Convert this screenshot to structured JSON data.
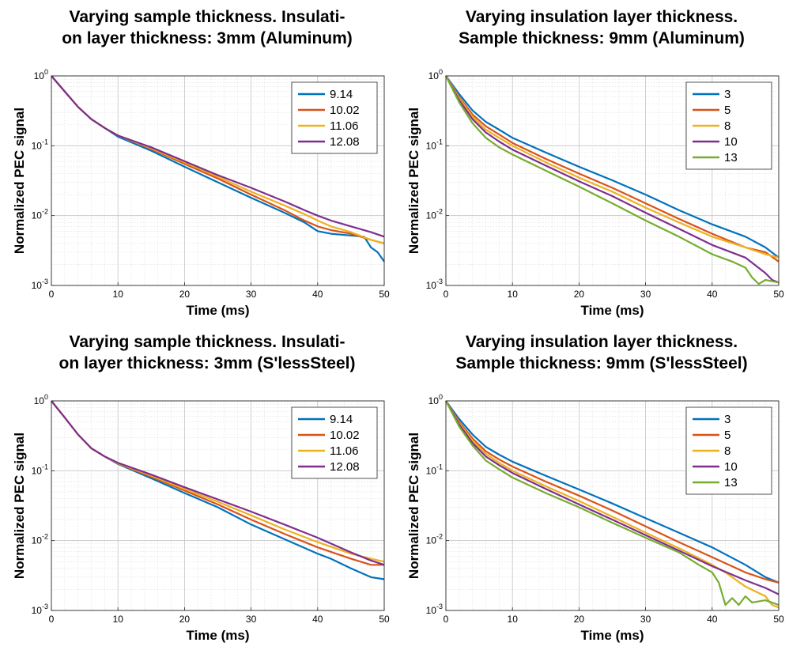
{
  "chart_data": [
    {
      "type": "line",
      "title": [
        "Varying sample thickness. Insulati-",
        "on layer thickness: 3mm (Aluminum)"
      ],
      "xlabel": "Time (ms)",
      "ylabel": "Normalized PEC signal",
      "xlim": [
        0,
        50
      ],
      "ylim": [
        0.001,
        1
      ],
      "yscale": "log",
      "grid": true,
      "legend_position": "top-right",
      "x_ticks": [
        "0",
        "10",
        "20",
        "30",
        "40",
        "50"
      ],
      "y_ticks": [
        {
          "base": "10",
          "exp": "0"
        },
        {
          "base": "10",
          "exp": "-1"
        },
        {
          "base": "10",
          "exp": "-2"
        },
        {
          "base": "10",
          "exp": "-3"
        }
      ],
      "series": [
        {
          "name": "9.14",
          "color": "#0072BD",
          "x": [
            0,
            2,
            4,
            6,
            8,
            10,
            15,
            20,
            25,
            30,
            35,
            38,
            40,
            42,
            45,
            47,
            48,
            49,
            50
          ],
          "y": [
            1,
            0.6,
            0.36,
            0.24,
            0.18,
            0.135,
            0.085,
            0.05,
            0.03,
            0.018,
            0.011,
            0.008,
            0.006,
            0.0055,
            0.0052,
            0.005,
            0.0035,
            0.003,
            0.0022
          ]
        },
        {
          "name": "10.02",
          "color": "#D95319",
          "x": [
            0,
            2,
            4,
            6,
            8,
            10,
            15,
            20,
            25,
            30,
            35,
            38,
            40,
            42,
            45,
            48,
            50
          ],
          "y": [
            1,
            0.6,
            0.36,
            0.24,
            0.18,
            0.14,
            0.09,
            0.055,
            0.034,
            0.02,
            0.012,
            0.0085,
            0.007,
            0.0062,
            0.0055,
            0.0045,
            0.004
          ]
        },
        {
          "name": "11.06",
          "color": "#EDB120",
          "x": [
            0,
            2,
            4,
            6,
            8,
            10,
            15,
            20,
            25,
            30,
            35,
            38,
            40,
            42,
            45,
            48,
            50
          ],
          "y": [
            1,
            0.6,
            0.36,
            0.24,
            0.18,
            0.14,
            0.092,
            0.058,
            0.036,
            0.022,
            0.014,
            0.0105,
            0.0085,
            0.007,
            0.0058,
            0.0045,
            0.004
          ]
        },
        {
          "name": "12.08",
          "color": "#7E2F8E",
          "x": [
            0,
            2,
            4,
            6,
            8,
            10,
            15,
            20,
            25,
            30,
            35,
            38,
            40,
            42,
            45,
            48,
            50
          ],
          "y": [
            1,
            0.6,
            0.36,
            0.24,
            0.18,
            0.14,
            0.095,
            0.06,
            0.038,
            0.025,
            0.016,
            0.012,
            0.01,
            0.0085,
            0.007,
            0.0058,
            0.005
          ]
        }
      ]
    },
    {
      "type": "line",
      "title": [
        "Varying insulation layer thickness.",
        "Sample thickness: 9mm (Aluminum)"
      ],
      "xlabel": "Time (ms)",
      "ylabel": "Normalized PEC signal",
      "xlim": [
        0,
        50
      ],
      "ylim": [
        0.001,
        1
      ],
      "yscale": "log",
      "grid": true,
      "legend_position": "top-right",
      "x_ticks": [
        "0",
        "10",
        "20",
        "30",
        "40",
        "50"
      ],
      "y_ticks": [
        {
          "base": "10",
          "exp": "0"
        },
        {
          "base": "10",
          "exp": "-1"
        },
        {
          "base": "10",
          "exp": "-2"
        },
        {
          "base": "10",
          "exp": "-3"
        }
      ],
      "series": [
        {
          "name": "3",
          "color": "#0072BD",
          "x": [
            0,
            2,
            4,
            6,
            8,
            10,
            15,
            20,
            25,
            30,
            35,
            40,
            45,
            48,
            50
          ],
          "y": [
            1,
            0.55,
            0.32,
            0.22,
            0.17,
            0.13,
            0.08,
            0.05,
            0.032,
            0.02,
            0.012,
            0.0075,
            0.005,
            0.0035,
            0.0025
          ]
        },
        {
          "name": "5",
          "color": "#D95319",
          "x": [
            0,
            2,
            4,
            6,
            8,
            10,
            15,
            20,
            25,
            30,
            35,
            40,
            45,
            48,
            50
          ],
          "y": [
            1,
            0.5,
            0.28,
            0.19,
            0.145,
            0.11,
            0.065,
            0.04,
            0.025,
            0.015,
            0.009,
            0.0055,
            0.0035,
            0.003,
            0.0022
          ]
        },
        {
          "name": "8",
          "color": "#EDB120",
          "x": [
            0,
            2,
            4,
            6,
            8,
            10,
            15,
            20,
            25,
            30,
            35,
            40,
            45,
            48,
            50
          ],
          "y": [
            1,
            0.48,
            0.26,
            0.17,
            0.13,
            0.1,
            0.058,
            0.035,
            0.022,
            0.013,
            0.008,
            0.005,
            0.0035,
            0.0028,
            0.0025
          ]
        },
        {
          "name": "10",
          "color": "#7E2F8E",
          "x": [
            0,
            2,
            4,
            6,
            8,
            10,
            15,
            20,
            25,
            30,
            35,
            40,
            45,
            48,
            49,
            50
          ],
          "y": [
            1,
            0.45,
            0.24,
            0.155,
            0.115,
            0.088,
            0.052,
            0.031,
            0.019,
            0.011,
            0.0065,
            0.0038,
            0.0025,
            0.0015,
            0.0012,
            0.0011
          ]
        },
        {
          "name": "13",
          "color": "#77AC30",
          "x": [
            0,
            2,
            4,
            6,
            8,
            10,
            15,
            20,
            25,
            30,
            35,
            40,
            43,
            45,
            46,
            47,
            48,
            50
          ],
          "y": [
            1,
            0.42,
            0.21,
            0.13,
            0.095,
            0.075,
            0.044,
            0.026,
            0.015,
            0.0085,
            0.005,
            0.0028,
            0.0022,
            0.0018,
            0.0013,
            0.00105,
            0.0012,
            0.0011
          ]
        }
      ]
    },
    {
      "type": "line",
      "title": [
        "Varying sample thickness. Insulati-",
        "on layer thickness: 3mm (S'lessSteel)"
      ],
      "xlabel": "Time (ms)",
      "ylabel": "Normalized PEC signal",
      "xlim": [
        0,
        50
      ],
      "ylim": [
        0.001,
        1
      ],
      "yscale": "log",
      "grid": true,
      "legend_position": "top-right",
      "x_ticks": [
        "0",
        "10",
        "20",
        "30",
        "40",
        "50"
      ],
      "y_ticks": [
        {
          "base": "10",
          "exp": "0"
        },
        {
          "base": "10",
          "exp": "-1"
        },
        {
          "base": "10",
          "exp": "-2"
        },
        {
          "base": "10",
          "exp": "-3"
        }
      ],
      "series": [
        {
          "name": "9.14",
          "color": "#0072BD",
          "x": [
            0,
            2,
            4,
            6,
            8,
            10,
            15,
            20,
            25,
            30,
            35,
            40,
            42,
            45,
            48,
            50
          ],
          "y": [
            1,
            0.58,
            0.33,
            0.21,
            0.16,
            0.125,
            0.078,
            0.048,
            0.03,
            0.017,
            0.0105,
            0.0065,
            0.0055,
            0.004,
            0.003,
            0.0028
          ]
        },
        {
          "name": "10.02",
          "color": "#D95319",
          "x": [
            0,
            2,
            4,
            6,
            8,
            10,
            15,
            20,
            25,
            30,
            35,
            40,
            45,
            48,
            50
          ],
          "y": [
            1,
            0.58,
            0.33,
            0.21,
            0.16,
            0.127,
            0.082,
            0.052,
            0.033,
            0.02,
            0.0125,
            0.008,
            0.0055,
            0.0045,
            0.0045
          ]
        },
        {
          "name": "11.06",
          "color": "#EDB120",
          "x": [
            0,
            2,
            4,
            6,
            8,
            10,
            15,
            20,
            25,
            30,
            35,
            40,
            45,
            48,
            50
          ],
          "y": [
            1,
            0.58,
            0.33,
            0.21,
            0.16,
            0.128,
            0.085,
            0.055,
            0.036,
            0.023,
            0.0145,
            0.0095,
            0.0065,
            0.0055,
            0.005
          ]
        },
        {
          "name": "12.08",
          "color": "#7E2F8E",
          "x": [
            0,
            2,
            4,
            6,
            8,
            10,
            15,
            20,
            25,
            30,
            35,
            40,
            45,
            48,
            50
          ],
          "y": [
            1,
            0.58,
            0.33,
            0.21,
            0.16,
            0.13,
            0.088,
            0.058,
            0.039,
            0.026,
            0.017,
            0.011,
            0.0068,
            0.0052,
            0.0045
          ]
        }
      ]
    },
    {
      "type": "line",
      "title": [
        "Varying insulation layer thickness.",
        "Sample thickness: 9mm (S'lessSteel)"
      ],
      "xlabel": "Time (ms)",
      "ylabel": "Normalized PEC signal",
      "xlim": [
        0,
        50
      ],
      "ylim": [
        0.001,
        1
      ],
      "yscale": "log",
      "grid": true,
      "legend_position": "top-right",
      "x_ticks": [
        "0",
        "10",
        "20",
        "30",
        "40",
        "50"
      ],
      "y_ticks": [
        {
          "base": "10",
          "exp": "0"
        },
        {
          "base": "10",
          "exp": "-1"
        },
        {
          "base": "10",
          "exp": "-2"
        },
        {
          "base": "10",
          "exp": "-3"
        }
      ],
      "series": [
        {
          "name": "3",
          "color": "#0072BD",
          "x": [
            0,
            2,
            4,
            6,
            8,
            10,
            15,
            20,
            25,
            30,
            35,
            40,
            45,
            48,
            50
          ],
          "y": [
            1,
            0.55,
            0.33,
            0.22,
            0.17,
            0.135,
            0.085,
            0.054,
            0.034,
            0.021,
            0.013,
            0.008,
            0.0045,
            0.003,
            0.0025
          ]
        },
        {
          "name": "5",
          "color": "#D95319",
          "x": [
            0,
            2,
            4,
            6,
            8,
            10,
            15,
            20,
            25,
            30,
            35,
            40,
            45,
            48,
            50
          ],
          "y": [
            1,
            0.5,
            0.29,
            0.19,
            0.145,
            0.115,
            0.07,
            0.044,
            0.027,
            0.016,
            0.0095,
            0.0058,
            0.0035,
            0.0028,
            0.0025
          ]
        },
        {
          "name": "8",
          "color": "#EDB120",
          "x": [
            0,
            2,
            4,
            6,
            8,
            10,
            15,
            20,
            25,
            30,
            35,
            40,
            42,
            45,
            48,
            49,
            50
          ],
          "y": [
            1,
            0.48,
            0.27,
            0.175,
            0.13,
            0.1,
            0.06,
            0.037,
            0.022,
            0.013,
            0.0078,
            0.0045,
            0.0035,
            0.0022,
            0.0016,
            0.0012,
            0.0011
          ]
        },
        {
          "name": "10",
          "color": "#7E2F8E",
          "x": [
            0,
            2,
            4,
            6,
            8,
            10,
            15,
            20,
            25,
            30,
            35,
            40,
            45,
            48,
            50
          ],
          "y": [
            1,
            0.46,
            0.25,
            0.16,
            0.12,
            0.093,
            0.055,
            0.033,
            0.02,
            0.012,
            0.0072,
            0.0043,
            0.0027,
            0.0021,
            0.0017
          ]
        },
        {
          "name": "13",
          "color": "#77AC30",
          "x": [
            0,
            2,
            4,
            6,
            8,
            10,
            15,
            20,
            25,
            30,
            35,
            38,
            40,
            41,
            42,
            43,
            44,
            45,
            46,
            48,
            50
          ],
          "y": [
            1,
            0.43,
            0.23,
            0.14,
            0.105,
            0.08,
            0.048,
            0.03,
            0.018,
            0.011,
            0.0068,
            0.0045,
            0.0035,
            0.0025,
            0.0012,
            0.0015,
            0.0012,
            0.0016,
            0.0013,
            0.0014,
            0.0012
          ]
        }
      ]
    }
  ]
}
